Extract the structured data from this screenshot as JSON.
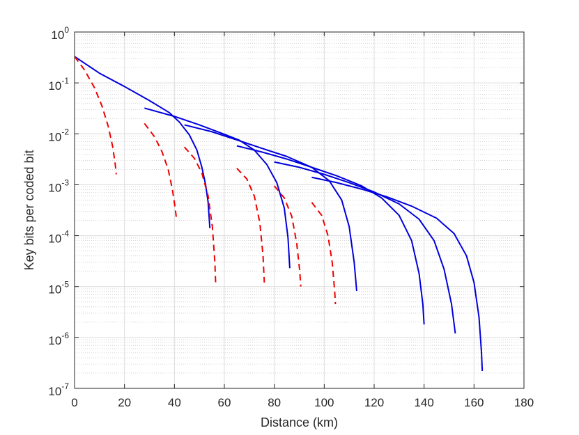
{
  "chart_data": {
    "type": "line",
    "title": "",
    "xlabel": "Distance (km)",
    "ylabel": "Key bits per coded bit",
    "xlim": [
      0,
      180
    ],
    "ylim": [
      1e-07,
      1
    ],
    "yscale": "log",
    "grid": true,
    "minor_grid": true,
    "x_ticks": [
      0,
      20,
      40,
      60,
      80,
      100,
      120,
      140,
      160,
      180
    ],
    "x_tick_labels": [
      "0",
      "20",
      "40",
      "60",
      "80",
      "100",
      "120",
      "140",
      "160",
      "180"
    ],
    "y_ticks": [
      1e-07,
      1e-06,
      1e-05,
      0.0001,
      0.001,
      0.01,
      0.1,
      1
    ],
    "y_tick_labels": [
      {
        "base": "10",
        "exp": "-7"
      },
      {
        "base": "10",
        "exp": "-6"
      },
      {
        "base": "10",
        "exp": "-5"
      },
      {
        "base": "10",
        "exp": "-4"
      },
      {
        "base": "10",
        "exp": "-3"
      },
      {
        "base": "10",
        "exp": "-2"
      },
      {
        "base": "10",
        "exp": "-1"
      },
      {
        "base": "10",
        "exp": "0"
      }
    ],
    "series": [
      {
        "style": "solid",
        "color": "#0000dd",
        "x": [
          0,
          10,
          20,
          30,
          38,
          42,
          46,
          49,
          51,
          52.5,
          53.5,
          54.2
        ],
        "y": [
          0.33,
          0.155,
          0.085,
          0.045,
          0.026,
          0.017,
          0.0095,
          0.0048,
          0.0022,
          0.001,
          0.00045,
          0.00014
        ]
      },
      {
        "style": "solid",
        "color": "#0000dd",
        "x": [
          28,
          40,
          50,
          60,
          66,
          72,
          77,
          81,
          84,
          85.5,
          86.2
        ],
        "y": [
          0.032,
          0.022,
          0.015,
          0.0098,
          0.0075,
          0.0048,
          0.0025,
          0.0011,
          0.00035,
          9e-05,
          2.3e-05
        ]
      },
      {
        "style": "solid",
        "color": "#0000dd",
        "x": [
          44,
          55,
          65,
          75,
          85,
          95,
          102,
          107,
          110,
          112,
          113
        ],
        "y": [
          0.015,
          0.011,
          0.0076,
          0.0052,
          0.0036,
          0.0022,
          0.0012,
          0.0005,
          0.00015,
          3e-05,
          8.2e-06
        ]
      },
      {
        "style": "solid",
        "color": "#0000dd",
        "x": [
          65,
          75,
          85,
          95,
          105,
          115,
          123,
          130,
          135,
          138,
          139.5,
          140
        ],
        "y": [
          0.0058,
          0.0044,
          0.0032,
          0.0022,
          0.0015,
          0.00095,
          0.00055,
          0.00025,
          8e-05,
          1.8e-05,
          4.5e-06,
          1.8e-06
        ]
      },
      {
        "style": "solid",
        "color": "#0000dd",
        "x": [
          80,
          90,
          100,
          110,
          120,
          130,
          138,
          144,
          148,
          151,
          152.5
        ],
        "y": [
          0.0028,
          0.0022,
          0.0016,
          0.0011,
          0.00072,
          0.00042,
          0.00021,
          8e-05,
          2.2e-05,
          4.5e-06,
          1.2e-06
        ]
      },
      {
        "style": "solid",
        "color": "#0000dd",
        "x": [
          95,
          105,
          115,
          125,
          135,
          145,
          152,
          157,
          160,
          162,
          163,
          163.3
        ],
        "y": [
          0.0014,
          0.0011,
          0.00082,
          0.00058,
          0.00038,
          0.00022,
          0.00011,
          4e-05,
          1.2e-05,
          2.5e-06,
          5e-07,
          2.2e-07
        ]
      },
      {
        "style": "dashed",
        "color": "#ee0000",
        "x": [
          0,
          4,
          8,
          11,
          13.5,
          15.3,
          16.3,
          16.7
        ],
        "y": [
          0.33,
          0.18,
          0.08,
          0.035,
          0.014,
          0.0055,
          0.0025,
          0.0016
        ]
      },
      {
        "style": "dashed",
        "color": "#ee0000",
        "x": [
          28,
          32,
          35,
          37.5,
          39.2,
          40.3,
          40.8
        ],
        "y": [
          0.016,
          0.0088,
          0.0045,
          0.002,
          0.0008,
          0.00035,
          0.00022
        ]
      },
      {
        "style": "dashed",
        "color": "#ee0000",
        "x": [
          44,
          48,
          51,
          53.5,
          55.2,
          56.2,
          56.5
        ],
        "y": [
          0.0055,
          0.0033,
          0.0017,
          0.0006,
          0.00015,
          3e-05,
          1.2e-05
        ]
      },
      {
        "style": "dashed",
        "color": "#ee0000",
        "x": [
          65,
          69,
          72,
          74.2,
          75.5,
          76
        ],
        "y": [
          0.0021,
          0.0013,
          0.0006,
          0.00018,
          4e-05,
          1.2e-05
        ]
      },
      {
        "style": "dashed",
        "color": "#ee0000",
        "x": [
          80,
          84,
          87,
          89,
          90.2,
          90.6
        ],
        "y": [
          0.00095,
          0.00055,
          0.00024,
          7e-05,
          2e-05,
          1e-05
        ]
      },
      {
        "style": "dashed",
        "color": "#ee0000",
        "x": [
          95,
          99,
          101.5,
          103.2,
          104.2,
          104.5
        ],
        "y": [
          0.00045,
          0.00025,
          0.0001,
          3e-05,
          8e-06,
          4.5e-06
        ]
      }
    ]
  }
}
